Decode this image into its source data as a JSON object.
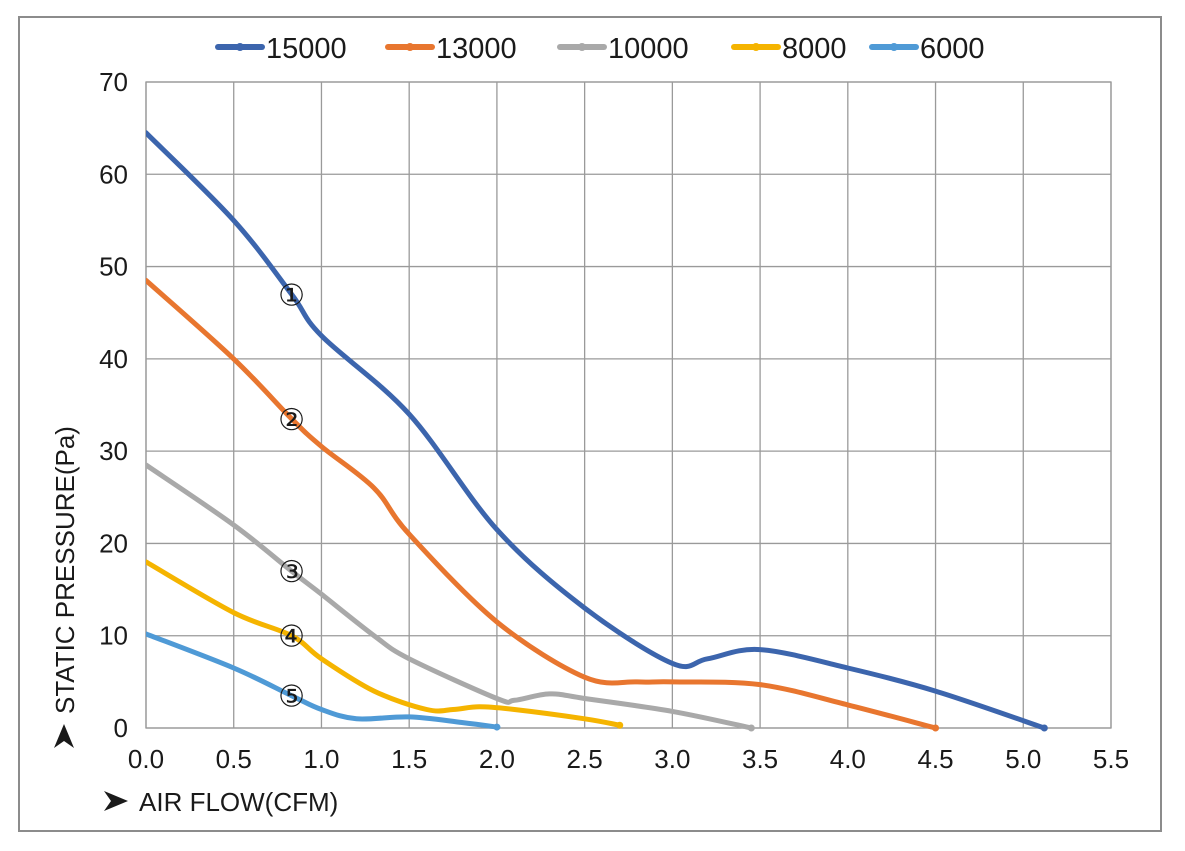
{
  "chart_data": {
    "type": "line",
    "xlabel": "AIR FLOW(CFM)",
    "ylabel": "STATIC PRESSURE(Pa)",
    "xlim": [
      0,
      5.5
    ],
    "ylim": [
      0,
      70
    ],
    "xticks": [
      "0.0",
      "0.5",
      "1.0",
      "1.5",
      "2.0",
      "2.5",
      "3.0",
      "3.5",
      "4.0",
      "4.5",
      "5.0",
      "5.5"
    ],
    "yticks": [
      "0",
      "10",
      "20",
      "30",
      "40",
      "50",
      "60",
      "70"
    ],
    "grid": true,
    "legend_position": "top",
    "series": [
      {
        "name": "15000",
        "color": "#3c65ad",
        "marker_label": "①",
        "marker_at": [
          0.83,
          47
        ],
        "points": [
          [
            0,
            64.5
          ],
          [
            0.5,
            55
          ],
          [
            0.83,
            47
          ],
          [
            1.0,
            42.5
          ],
          [
            1.5,
            34
          ],
          [
            2.0,
            21.5
          ],
          [
            2.5,
            13
          ],
          [
            3.0,
            7
          ],
          [
            3.2,
            7.5
          ],
          [
            3.5,
            8.5
          ],
          [
            4.0,
            6.5
          ],
          [
            4.5,
            4
          ],
          [
            5.12,
            0
          ]
        ]
      },
      {
        "name": "13000",
        "color": "#e8762f",
        "marker_label": "②",
        "marker_at": [
          0.83,
          33.5
        ],
        "points": [
          [
            0,
            48.5
          ],
          [
            0.5,
            40
          ],
          [
            0.83,
            33.5
          ],
          [
            1.0,
            30.5
          ],
          [
            1.3,
            26
          ],
          [
            1.5,
            21
          ],
          [
            2.0,
            11.5
          ],
          [
            2.5,
            5.5
          ],
          [
            2.8,
            5
          ],
          [
            3.0,
            5
          ],
          [
            3.5,
            4.7
          ],
          [
            4.0,
            2.5
          ],
          [
            4.5,
            0
          ]
        ]
      },
      {
        "name": "10000",
        "color": "#a9a9a9",
        "marker_label": "③",
        "marker_at": [
          0.83,
          17
        ],
        "points": [
          [
            0,
            28.5
          ],
          [
            0.5,
            22
          ],
          [
            0.83,
            17
          ],
          [
            1.0,
            14.5
          ],
          [
            1.3,
            10
          ],
          [
            1.5,
            7.5
          ],
          [
            2.0,
            3.2
          ],
          [
            2.1,
            3
          ],
          [
            2.3,
            3.7
          ],
          [
            2.5,
            3.2
          ],
          [
            3.0,
            1.8
          ],
          [
            3.45,
            0
          ]
        ]
      },
      {
        "name": "8000",
        "color": "#f5b400",
        "marker_label": "④",
        "marker_at": [
          0.83,
          10
        ],
        "points": [
          [
            0,
            18
          ],
          [
            0.5,
            12.5
          ],
          [
            0.83,
            10
          ],
          [
            1.0,
            7.5
          ],
          [
            1.3,
            4
          ],
          [
            1.6,
            2
          ],
          [
            1.75,
            2
          ],
          [
            1.9,
            2.3
          ],
          [
            2.1,
            2
          ],
          [
            2.5,
            1
          ],
          [
            2.7,
            0.3
          ]
        ]
      },
      {
        "name": "6000",
        "color": "#4f9ad6",
        "marker_label": "⑤",
        "marker_at": [
          0.83,
          3.5
        ],
        "points": [
          [
            0,
            10.2
          ],
          [
            0.5,
            6.5
          ],
          [
            0.83,
            3.5
          ],
          [
            1.0,
            2
          ],
          [
            1.2,
            1
          ],
          [
            1.5,
            1.2
          ],
          [
            1.8,
            0.6
          ],
          [
            2.0,
            0.1
          ]
        ]
      }
    ]
  }
}
